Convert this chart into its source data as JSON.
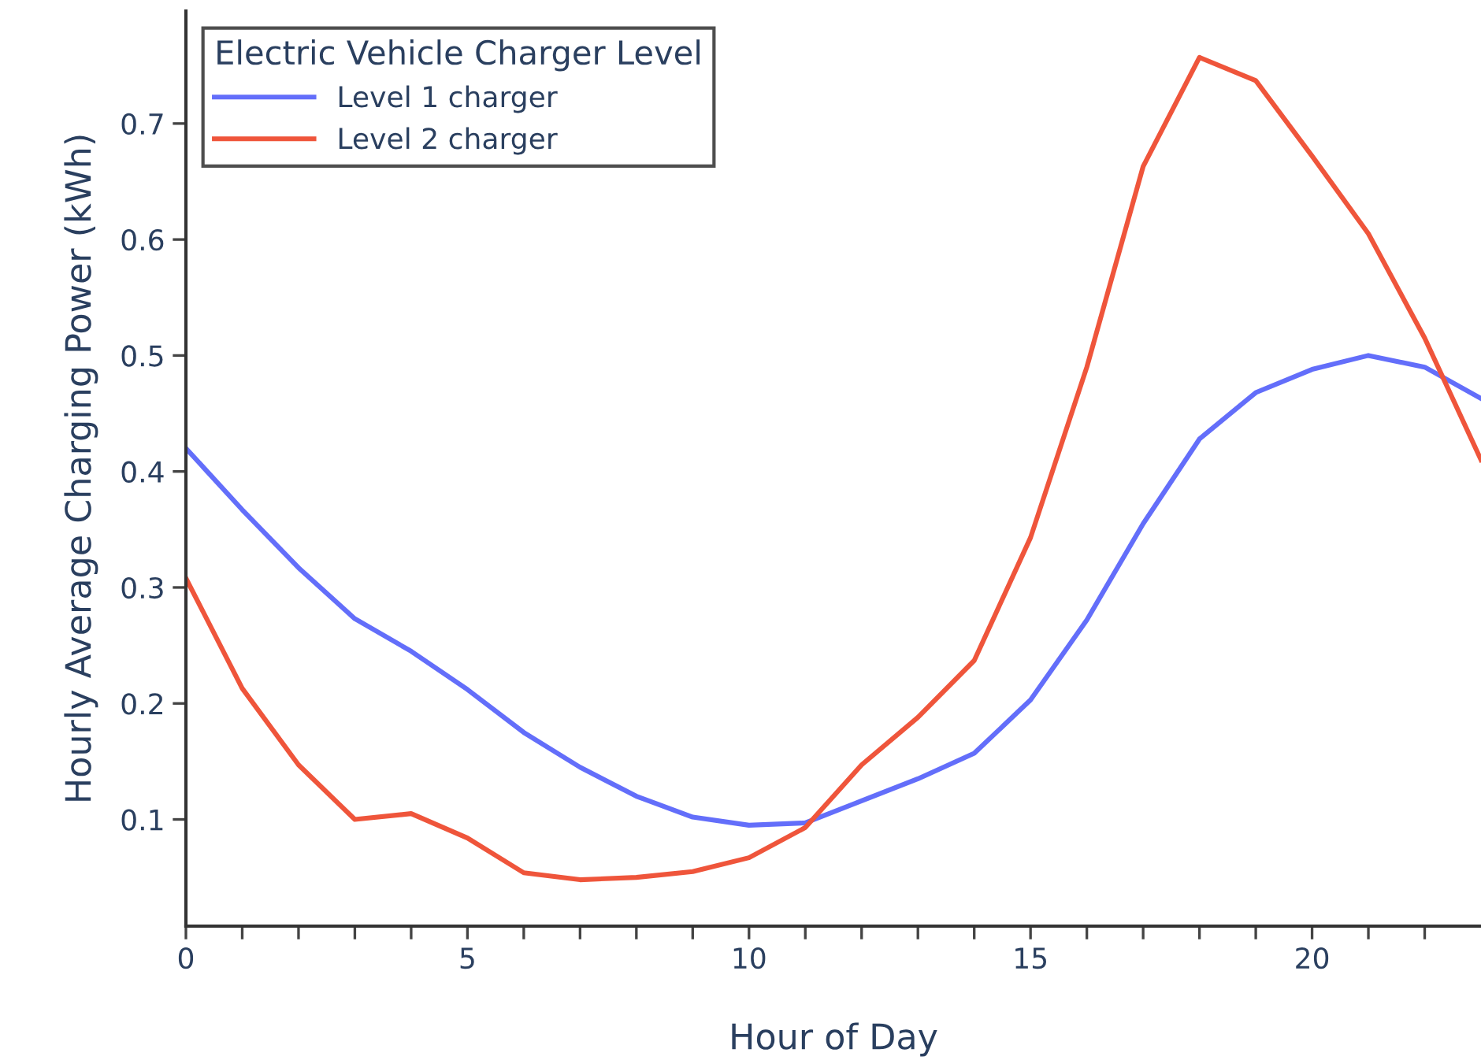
{
  "chart_data": {
    "type": "line",
    "xlabel": "Hour of Day",
    "ylabel": "Hourly Average Charging Power (kWh)",
    "legend_title": "Electric Vehicle Charger Level",
    "legend": "top left",
    "grid": false,
    "marker": "none",
    "line_style": "solid",
    "x": [
      0,
      1,
      2,
      3,
      4,
      5,
      6,
      7,
      8,
      9,
      10,
      11,
      12,
      13,
      14,
      15,
      16,
      17,
      18,
      19,
      20,
      21,
      22,
      23
    ],
    "xlim": [
      0,
      23
    ],
    "ylim": [
      0.008,
      0.797
    ],
    "xticks": [
      0,
      {
        "value": 1,
        "label": null
      },
      {
        "value": 2,
        "label": null
      },
      {
        "value": 3,
        "label": null
      },
      {
        "value": 4,
        "label": null
      },
      5,
      {
        "value": 6,
        "label": null
      },
      {
        "value": 7,
        "label": null
      },
      {
        "value": 8,
        "label": null
      },
      {
        "value": 9,
        "label": null
      },
      10,
      {
        "value": 11,
        "label": null
      },
      {
        "value": 12,
        "label": null
      },
      {
        "value": 13,
        "label": null
      },
      {
        "value": 14,
        "label": null
      },
      15,
      {
        "value": 16,
        "label": null
      },
      {
        "value": 17,
        "label": null
      },
      {
        "value": 18,
        "label": null
      },
      {
        "value": 19,
        "label": null
      },
      20,
      {
        "value": 21,
        "label": null
      },
      {
        "value": 22,
        "label": null
      }
    ],
    "yticks": [
      0.1,
      0.2,
      0.3,
      0.4,
      0.5,
      0.6,
      0.7
    ],
    "series": [
      {
        "name": "Level 1 charger",
        "color": "#636efa",
        "values": [
          0.42,
          0.367,
          0.317,
          0.273,
          0.245,
          0.212,
          0.175,
          0.145,
          0.12,
          0.102,
          0.095,
          0.097,
          0.116,
          0.135,
          0.157,
          0.203,
          0.272,
          0.355,
          0.428,
          0.468,
          0.488,
          0.5,
          0.49,
          0.463
        ]
      },
      {
        "name": "Level 2 charger",
        "color": "#ef553b",
        "values": [
          0.308,
          0.213,
          0.147,
          0.1,
          0.105,
          0.084,
          0.054,
          0.048,
          0.05,
          0.055,
          0.067,
          0.093,
          0.147,
          0.188,
          0.237,
          0.343,
          0.49,
          0.663,
          0.757,
          0.737,
          0.672,
          0.605,
          0.515,
          0.41
        ]
      }
    ]
  }
}
